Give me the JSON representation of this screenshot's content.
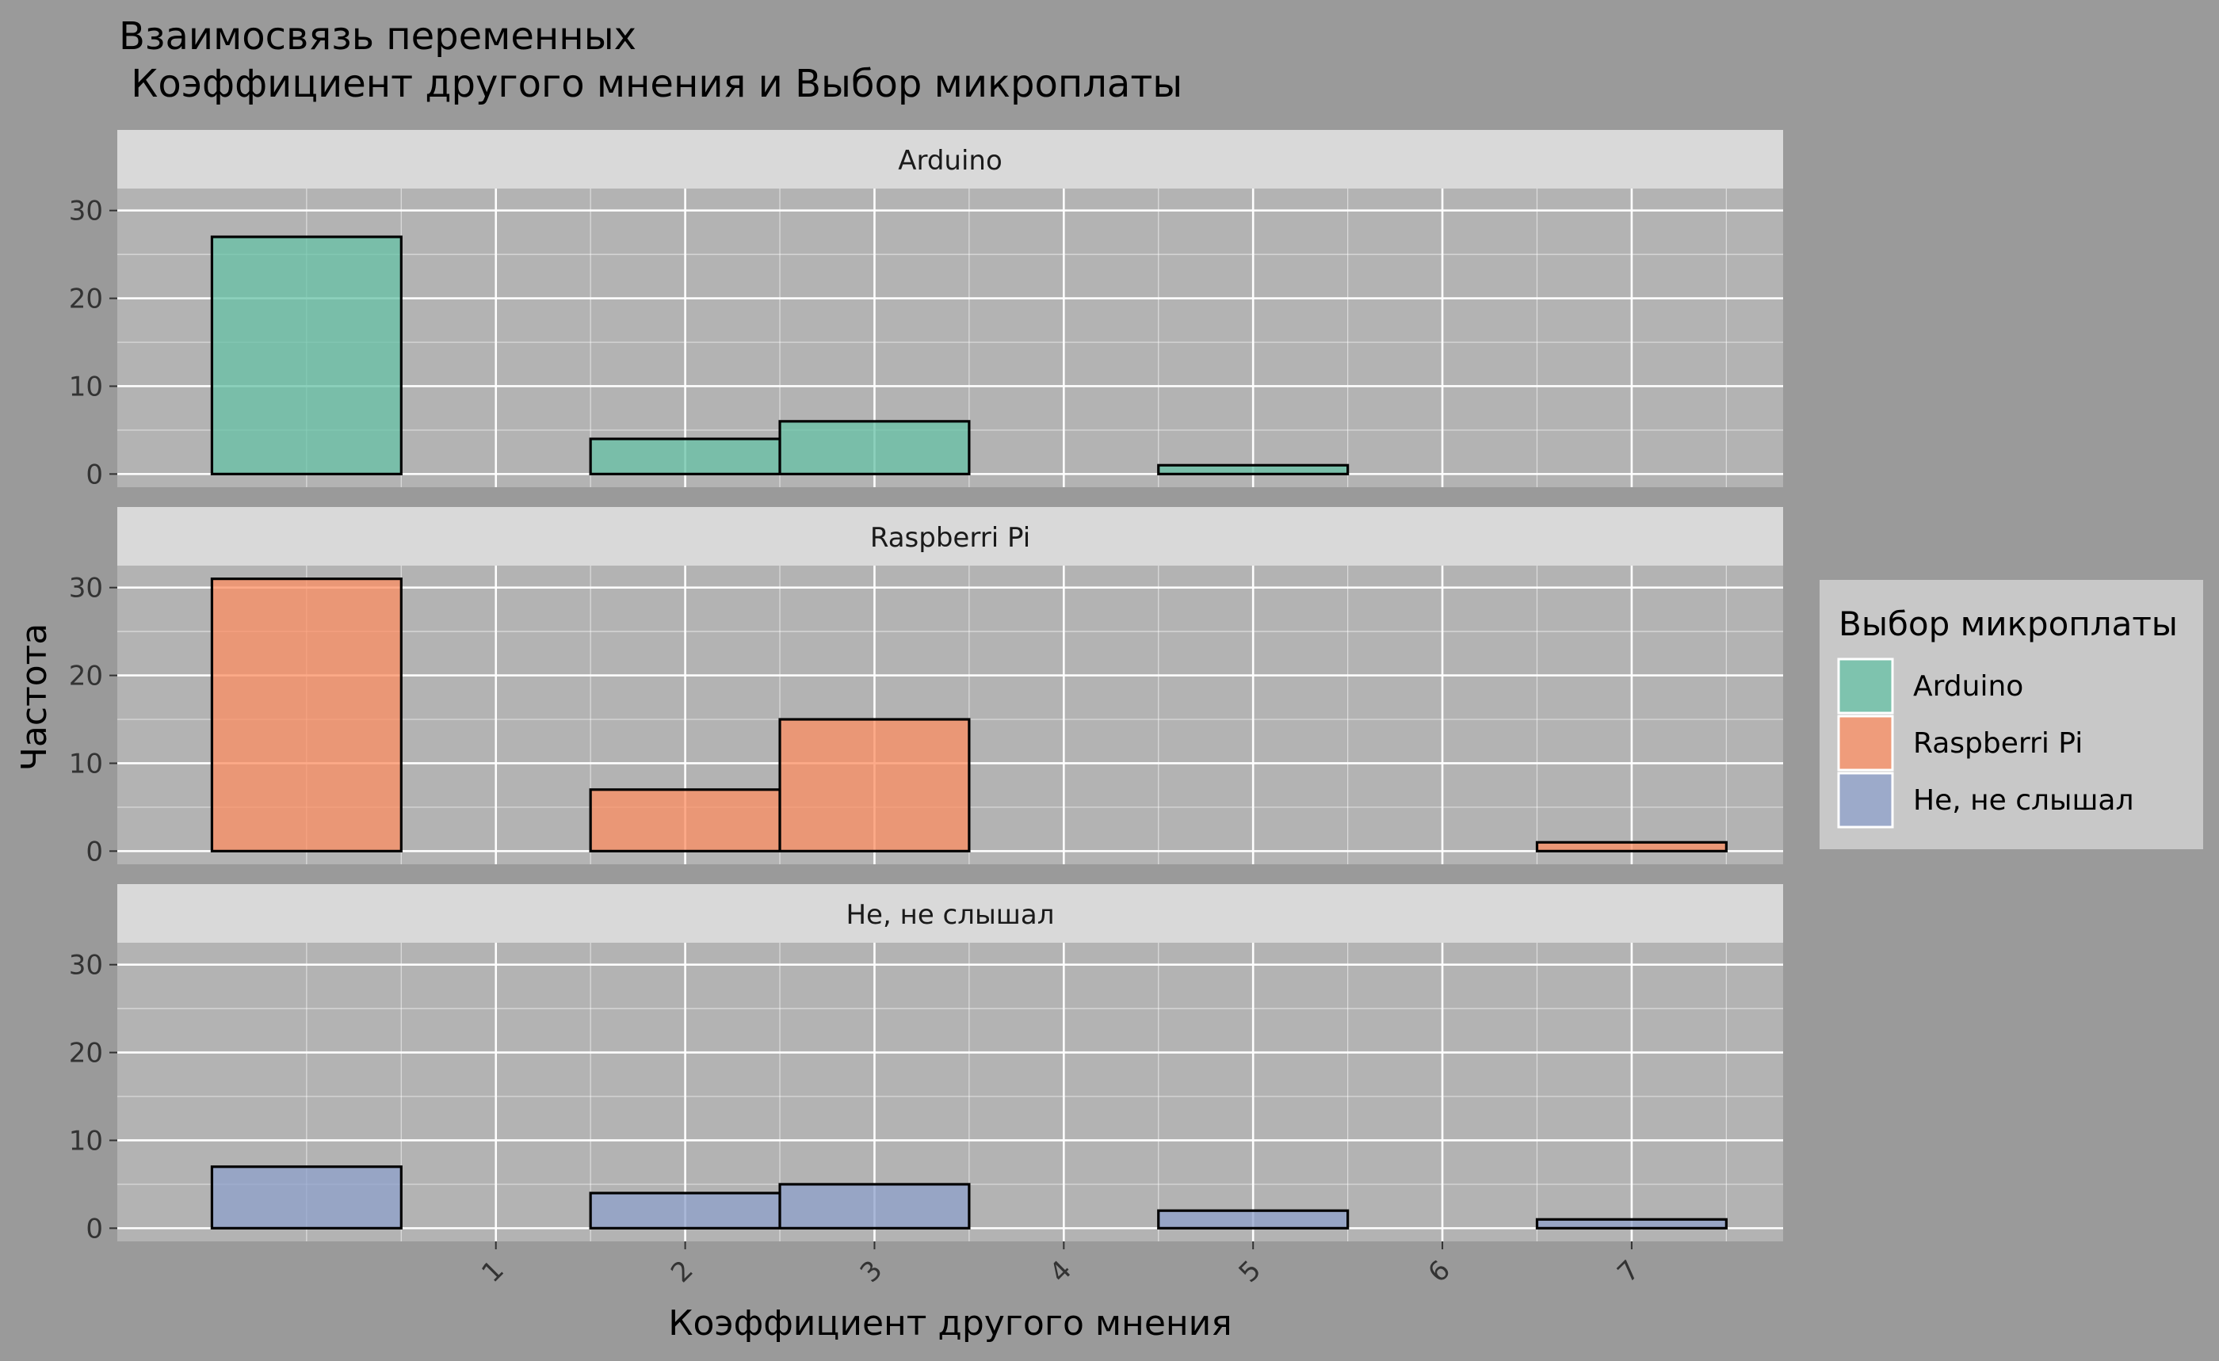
{
  "title": {
    "line1": "Взаимосвязь переменных",
    "line2": " Коэффициент другого мнения и Выбор микроплаты"
  },
  "colors": {
    "page_bg": "#9a9a9a",
    "panel_bg": "#b3b3b3",
    "strip_bg": "#d9d9d9",
    "grid": "#ffffff",
    "bar_outline": "#000000",
    "legend_bg": "#c8c8c8",
    "Arduino": "#66c2a5",
    "Raspberri Pi": "#fc8d62",
    "Не, не слышал": "#8da0cb"
  },
  "legend": {
    "title": "Выбор микроплаты",
    "position": "right",
    "items": [
      "Arduino",
      "Raspberri Pi",
      "Не, не слышал"
    ]
  },
  "chart_data": {
    "type": "bar",
    "subtype": "faceted histogram (binwidth 1)",
    "xlabel": "Коэффициент другого мнения",
    "ylabel": "Частота",
    "x_ticks": [
      1,
      2,
      3,
      4,
      5,
      6,
      7
    ],
    "y_ticks": [
      0,
      10,
      20,
      30
    ],
    "xlim": [
      -1.0,
      7.8
    ],
    "ylim": [
      -1.5,
      32.5
    ],
    "bin_edges": [
      -0.5,
      0.5,
      1.5,
      2.5,
      3.5,
      4.5,
      5.5,
      6.5,
      7.5
    ],
    "grid": true,
    "series": [
      {
        "name": "Arduino",
        "values": [
          27,
          0,
          4,
          6,
          0,
          1,
          0,
          0
        ]
      },
      {
        "name": "Raspberri Pi",
        "values": [
          31,
          0,
          7,
          15,
          0,
          0,
          0,
          1
        ]
      },
      {
        "name": "Не, не слышал",
        "values": [
          7,
          0,
          4,
          5,
          0,
          2,
          0,
          1
        ]
      }
    ]
  }
}
